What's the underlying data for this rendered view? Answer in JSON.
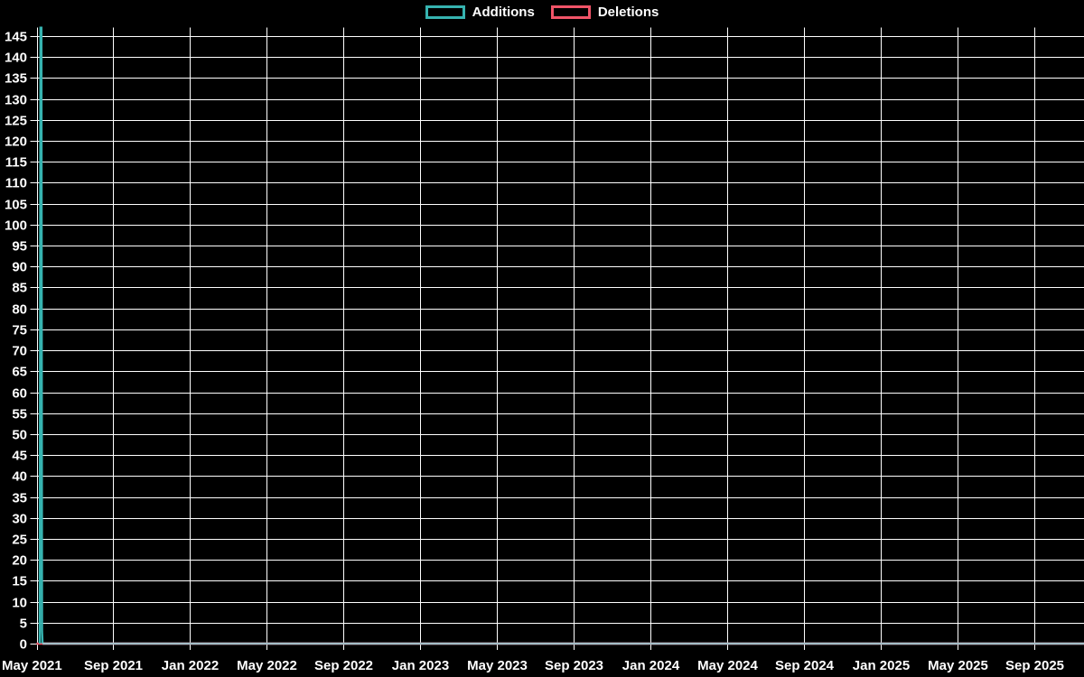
{
  "chart_data": {
    "type": "line",
    "title": "",
    "background_color": "#000000",
    "grid_color": "#ffffff",
    "text_color": "#ffffff",
    "grid": true,
    "legend_position": "top-center",
    "legend": [
      {
        "label": "Additions",
        "color": "#36b3b0"
      },
      {
        "label": "Deletions",
        "color": "#f05468"
      }
    ],
    "x_tick_labels": [
      "May 2021",
      "Sep 2021",
      "Jan 2022",
      "May 2022",
      "Sep 2022",
      "Jan 2023",
      "May 2023",
      "Sep 2023",
      "Jan 2024",
      "May 2024",
      "Sep 2024",
      "Jan 2025",
      "May 2025",
      "Sep 2025"
    ],
    "y_tick_labels": [
      "0",
      "5",
      "10",
      "15",
      "20",
      "25",
      "30",
      "35",
      "40",
      "45",
      "50",
      "55",
      "60",
      "65",
      "70",
      "75",
      "80",
      "85",
      "90",
      "95",
      "100",
      "105",
      "110",
      "115",
      "120",
      "125",
      "130",
      "135",
      "140",
      "145"
    ],
    "ylim": [
      0,
      147
    ],
    "series": [
      {
        "name": "Deletions",
        "color": "#f05468",
        "peak": 0,
        "segments": [
          {
            "color": "#f05468",
            "points": [
              [
                0.0,
                0
              ],
              [
                1.0,
                0
              ]
            ]
          }
        ]
      },
      {
        "name": "Additions",
        "color": "#36b3b0",
        "peak": 147,
        "peak_x_label": "May 2021",
        "segments": [
          {
            "color": "#36b3b0",
            "points": [
              [
                0.003,
                0
              ],
              [
                0.0037,
                147
              ],
              [
                0.0046,
                147
              ],
              [
                0.0052,
                3
              ],
              [
                0.0057,
                0
              ]
            ]
          },
          {
            "color": "#a4bec7",
            "points": [
              [
                0.0057,
                0
              ],
              [
                1.0,
                0
              ]
            ]
          }
        ]
      }
    ]
  }
}
